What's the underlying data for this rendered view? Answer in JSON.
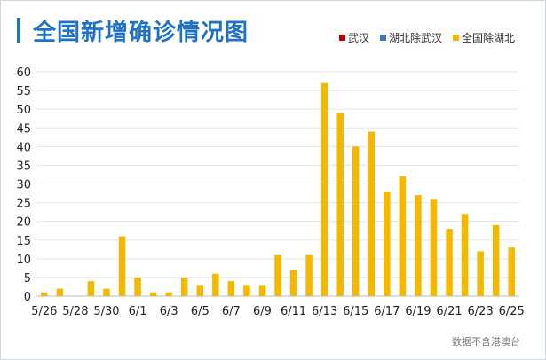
{
  "title": "全国新增确诊情况图",
  "legend": [
    {
      "label": "武汉",
      "color": "#c00000"
    },
    {
      "label": "湖北除武汉",
      "color": "#4472c4"
    },
    {
      "label": "全国除湖北",
      "color": "#f5b800"
    }
  ],
  "source": "数据不含港澳台",
  "chart_data": {
    "type": "bar",
    "title": "全国新增确诊情况图",
    "xlabel": "",
    "ylabel": "",
    "ylim": [
      0,
      60
    ],
    "yticks": [
      0,
      5,
      10,
      15,
      20,
      25,
      30,
      35,
      40,
      45,
      50,
      55,
      60
    ],
    "grid": true,
    "legend_position": "top-right",
    "categories": [
      "5/26",
      "5/27",
      "5/28",
      "5/29",
      "5/30",
      "5/31",
      "6/1",
      "6/2",
      "6/3",
      "6/4",
      "6/5",
      "6/6",
      "6/7",
      "6/8",
      "6/9",
      "6/10",
      "6/11",
      "6/12",
      "6/13",
      "6/14",
      "6/15",
      "6/16",
      "6/17",
      "6/18",
      "6/19",
      "6/20",
      "6/21",
      "6/22",
      "6/23",
      "6/24",
      "6/25"
    ],
    "xtick_labels": [
      "5/26",
      "5/28",
      "5/30",
      "6/1",
      "6/3",
      "6/5",
      "6/7",
      "6/9",
      "6/11",
      "6/13",
      "6/15",
      "6/17",
      "6/19",
      "6/21",
      "6/23",
      "6/25"
    ],
    "series": [
      {
        "name": "全国除湖北",
        "color": "#f5b800",
        "values": [
          1,
          2,
          0,
          4,
          2,
          16,
          5,
          1,
          1,
          5,
          3,
          6,
          4,
          3,
          3,
          11,
          7,
          11,
          57,
          49,
          40,
          44,
          28,
          32,
          27,
          26,
          18,
          22,
          12,
          19,
          13
        ]
      }
    ]
  }
}
